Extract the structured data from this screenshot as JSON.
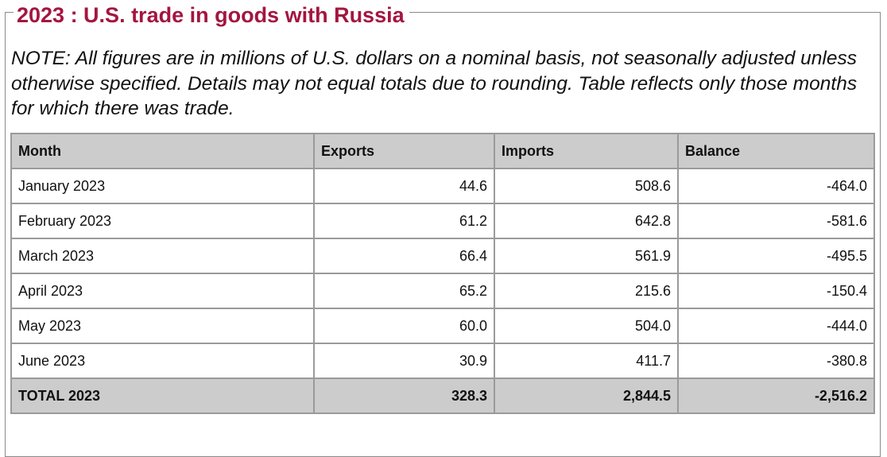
{
  "title": "2023 : U.S. trade in goods with Russia",
  "note": "NOTE: All figures are in millions of U.S. dollars on a nominal basis, not seasonally adjusted unless otherwise specified. Details may not equal totals due to rounding. Table reflects only those months for which there was trade.",
  "table": {
    "headers": [
      "Month",
      "Exports",
      "Imports",
      "Balance"
    ],
    "rows": [
      {
        "month": "January 2023",
        "exports": "44.6",
        "imports": "508.6",
        "balance": "-464.0"
      },
      {
        "month": "February 2023",
        "exports": "61.2",
        "imports": "642.8",
        "balance": "-581.6"
      },
      {
        "month": "March 2023",
        "exports": "66.4",
        "imports": "561.9",
        "balance": "-495.5"
      },
      {
        "month": "April 2023",
        "exports": "65.2",
        "imports": "215.6",
        "balance": "-150.4"
      },
      {
        "month": "May 2023",
        "exports": "60.0",
        "imports": "504.0",
        "balance": "-444.0"
      },
      {
        "month": "June 2023",
        "exports": "30.9",
        "imports": "411.7",
        "balance": "-380.8"
      }
    ],
    "total": {
      "month": "TOTAL 2023",
      "exports": "328.3",
      "imports": "2,844.5",
      "balance": "-2,516.2"
    }
  },
  "colors": {
    "title": "#a3163f",
    "header_bg": "#cccccc",
    "border": "#9a9a9a"
  }
}
